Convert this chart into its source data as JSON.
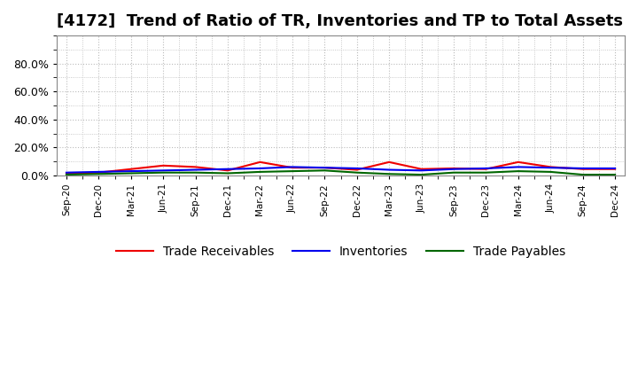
{
  "title": "[4172]  Trend of Ratio of TR, Inventories and TP to Total Assets",
  "x_labels": [
    "Sep-20",
    "Dec-20",
    "Mar-21",
    "Jun-21",
    "Sep-21",
    "Dec-21",
    "Mar-22",
    "Jun-22",
    "Sep-22",
    "Dec-22",
    "Mar-23",
    "Jun-23",
    "Sep-23",
    "Dec-23",
    "Mar-24",
    "Jun-24",
    "Sep-24",
    "Dec-24"
  ],
  "trade_receivables": [
    1.5,
    2.0,
    4.5,
    7.0,
    6.0,
    3.5,
    9.5,
    5.5,
    5.5,
    4.0,
    9.5,
    4.5,
    5.0,
    4.5,
    9.5,
    6.0,
    4.5,
    4.5
  ],
  "inventories": [
    2.0,
    2.5,
    3.0,
    3.5,
    4.0,
    4.5,
    5.0,
    6.0,
    5.5,
    5.0,
    4.0,
    3.5,
    4.5,
    5.0,
    6.0,
    5.5,
    5.0,
    5.0
  ],
  "trade_payables": [
    0.5,
    1.0,
    1.5,
    2.0,
    2.0,
    1.5,
    2.5,
    3.0,
    3.5,
    2.0,
    1.0,
    0.5,
    2.0,
    2.0,
    3.0,
    2.5,
    0.5,
    0.5
  ],
  "tr_color": "#ee0000",
  "inv_color": "#0000ee",
  "tp_color": "#006600",
  "ylim": [
    0,
    100
  ],
  "yticks": [
    0,
    20,
    40,
    60,
    80
  ],
  "ytick_labels": [
    "0.0%",
    "20.0%",
    "40.0%",
    "60.0%",
    "80.0%"
  ],
  "background_color": "#ffffff",
  "grid_color": "#bbbbbb",
  "title_fontsize": 13
}
